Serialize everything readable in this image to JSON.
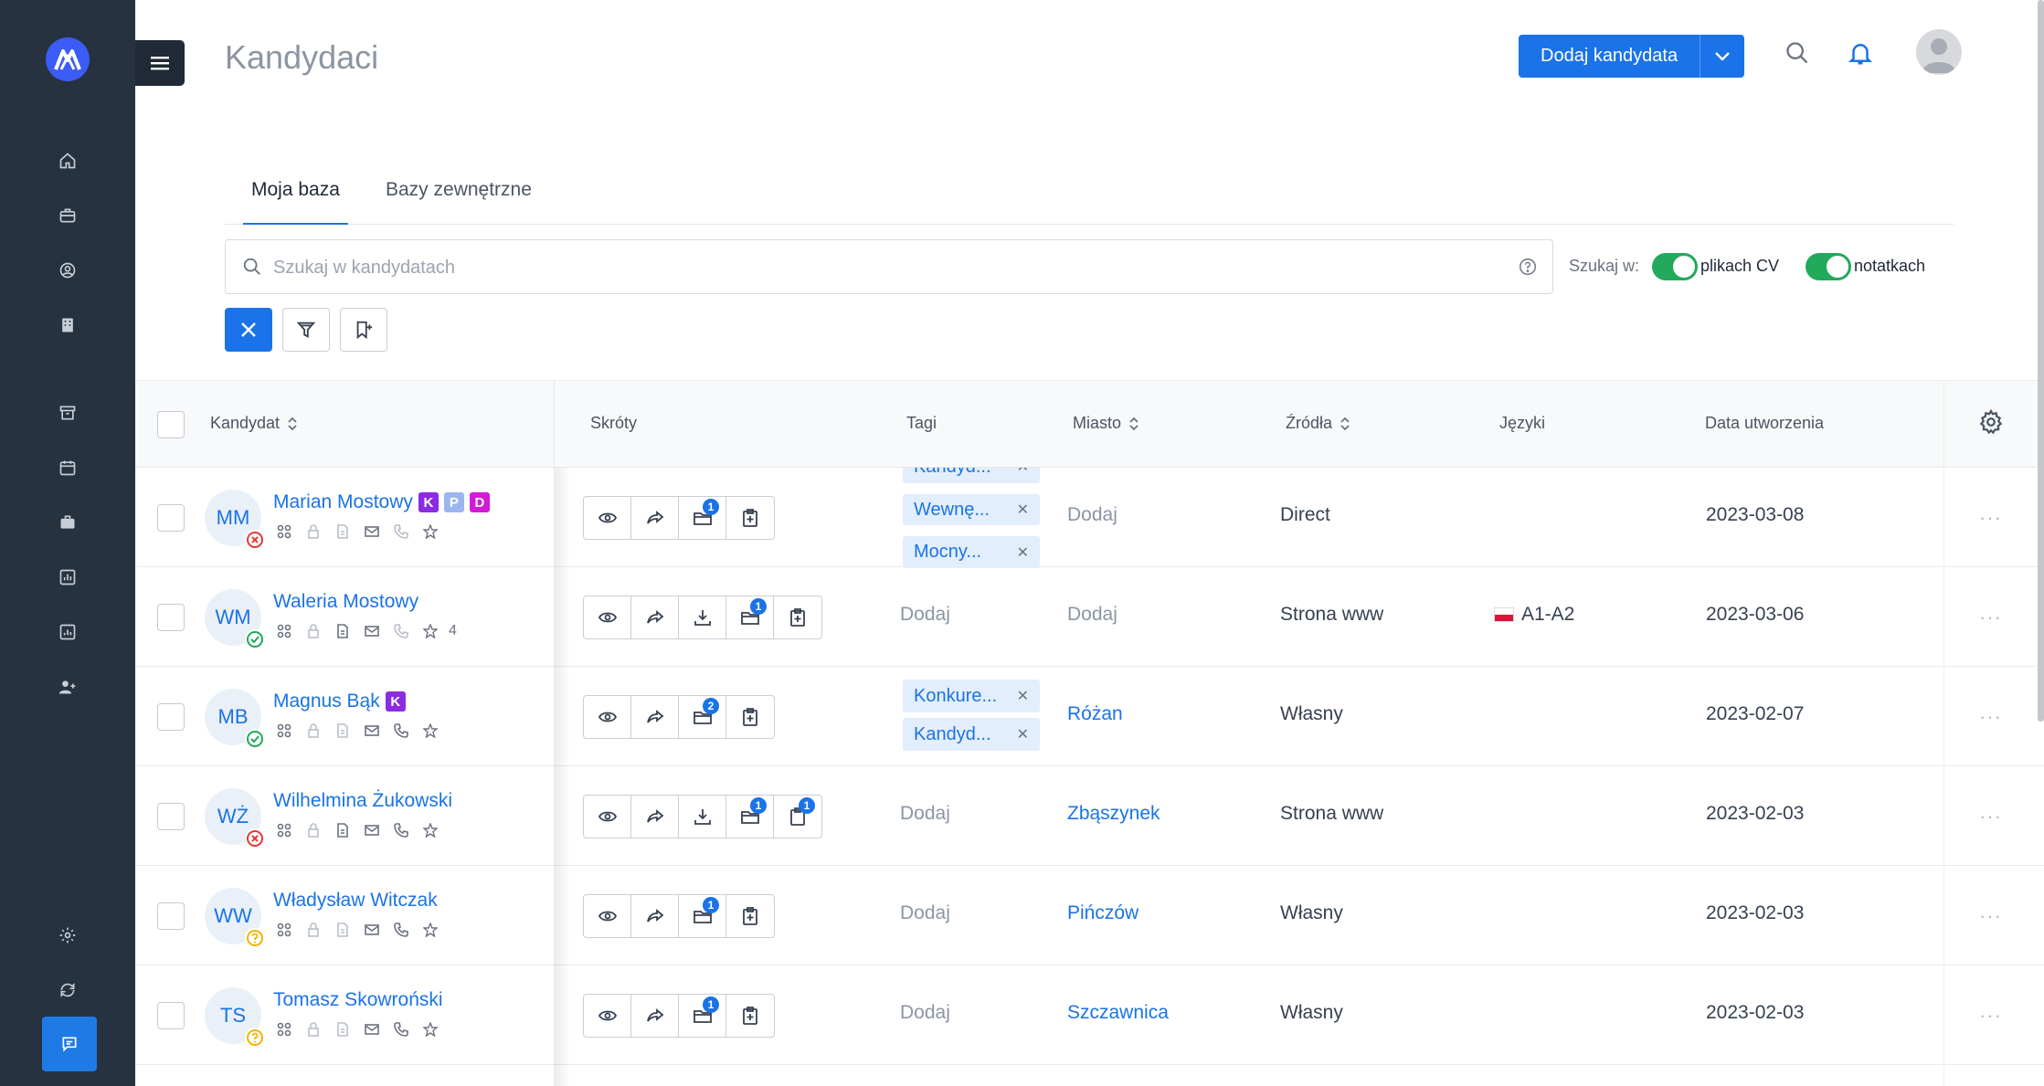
{
  "page": {
    "title": "Kandydaci"
  },
  "header": {
    "add_button": "Dodaj kandydata"
  },
  "tabs": [
    {
      "label": "Moja baza"
    },
    {
      "label": "Bazy zewnętrzne"
    }
  ],
  "search": {
    "placeholder": "Szukaj w kandydatach",
    "search_in_label": "Szukaj w:",
    "toggle_cv": "plikach CV",
    "toggle_notes": "notatkach"
  },
  "columns": {
    "candidate": "Kandydat",
    "shortcuts": "Skróty",
    "tags": "Tagi",
    "city": "Miasto",
    "sources": "Źródła",
    "languages": "Języki",
    "created": "Data utworzenia"
  },
  "rows": [
    {
      "initials": "MM",
      "name": "Marian Mostowy",
      "status": "rejected",
      "badges": [
        "K",
        "P",
        "D"
      ],
      "stars": "",
      "shortcut_counts": [
        "",
        "",
        "1",
        ""
      ],
      "tags": [
        "Kandyd...",
        "Wewnę...",
        "Mocny..."
      ],
      "city": "Dodaj",
      "city_is_link": false,
      "source": "Direct",
      "language": "",
      "date": "2023-03-08"
    },
    {
      "initials": "WM",
      "name": "Waleria Mostowy",
      "status": "accepted",
      "badges": [],
      "stars": "4",
      "tags_empty": "Dodaj",
      "city": "Dodaj",
      "city_is_link": false,
      "source": "Strona www",
      "language": "A1-A2",
      "date": "2023-03-06"
    },
    {
      "initials": "MB",
      "name": "Magnus Bąk",
      "status": "accepted",
      "badges": [
        "K"
      ],
      "stars": "",
      "tags": [
        "Konkure...",
        "Kandyd..."
      ],
      "city": "Różan",
      "city_is_link": true,
      "source": "Własny",
      "language": "",
      "date": "2023-02-07"
    },
    {
      "initials": "WŻ",
      "name": "Wilhelmina Żukowski",
      "status": "rejected",
      "badges": [],
      "stars": "",
      "tags_empty": "Dodaj",
      "city": "Zbąszynek",
      "city_is_link": true,
      "source": "Strona www",
      "language": "",
      "date": "2023-02-03"
    },
    {
      "initials": "WW",
      "name": "Władysław Witczak",
      "status": "pending",
      "badges": [],
      "stars": "",
      "tags_empty": "Dodaj",
      "city": "Pińczów",
      "city_is_link": true,
      "source": "Własny",
      "language": "",
      "date": "2023-02-03"
    },
    {
      "initials": "TS",
      "name": "Tomasz Skowroński",
      "status": "pending",
      "badges": [],
      "stars": "",
      "tags_empty": "Dodaj",
      "city": "Szczawnica",
      "city_is_link": true,
      "source": "Własny",
      "language": "",
      "date": "2023-02-03"
    }
  ],
  "counts": {
    "r0_folder": "1",
    "r1_folder": "1",
    "r2_folder": "2",
    "r3_folder": "1",
    "r3_clip": "1",
    "r4_folder": "1",
    "r5_folder": "1"
  },
  "row_menu": "···",
  "colors": {
    "sidebar": "#263240",
    "accent": "#1a73e8",
    "toggle_on": "#22a95b"
  }
}
